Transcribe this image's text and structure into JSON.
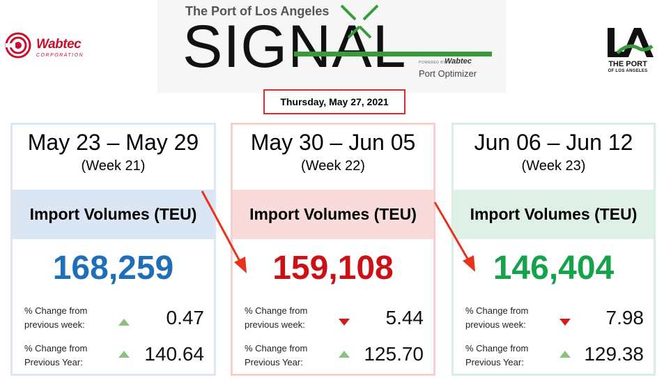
{
  "header": {
    "signal_top": "The Port of Los Angeles",
    "signal_word": "SIGNAL",
    "powered_by": "POWERED BY",
    "powered_brand": "Wabtec",
    "port_optimizer": "Port Optimizer",
    "wabtec_logo_text": "Wabtec",
    "wabtec_logo_sub": "CORPORATION",
    "la_logo_line1": "THE PORT",
    "la_logo_line2": "OF LOS ANGELES"
  },
  "date": "Thursday, May 27, 2021",
  "cards": [
    {
      "range": "May 23 – May 29",
      "week": "(Week 21)",
      "band_title": "Import Volumes (TEU)",
      "volume": "168,259",
      "row1_label_a": "% Change from",
      "row1_label_b": "previous week:",
      "row1_value": "0.47",
      "row1_direction": "up",
      "row2_label_a": "% Change from",
      "row2_label_b": "Previous Year:",
      "row2_value": "140.64",
      "row2_direction": "up"
    },
    {
      "range": "May 30 – Jun 05",
      "week": "(Week 22)",
      "band_title": "Import Volumes (TEU)",
      "volume": "159,108",
      "row1_label_a": "% Change from",
      "row1_label_b": "previous week:",
      "row1_value": "5.44",
      "row1_direction": "down",
      "row2_label_a": "% Change from",
      "row2_label_b": "Previous Year:",
      "row2_value": "125.70",
      "row2_direction": "up"
    },
    {
      "range": "Jun 06 – Jun 12",
      "week": "(Week 23)",
      "band_title": "Import Volumes (TEU)",
      "volume": "146,404",
      "row1_label_a": "% Change from",
      "row1_label_b": "previous week:",
      "row1_value": "7.98",
      "row1_direction": "down",
      "row2_label_a": "% Change from",
      "row2_label_b": "Previous Year:",
      "row2_value": "129.38",
      "row2_direction": "up"
    }
  ],
  "colors": {
    "up_triangle": "#8cc080",
    "down_triangle": "#d11a1a",
    "signal_green": "#3a9a3a",
    "wabtec_red": "#c8102e",
    "date_border": "#d32f2f",
    "arrow": "#e8321e"
  }
}
